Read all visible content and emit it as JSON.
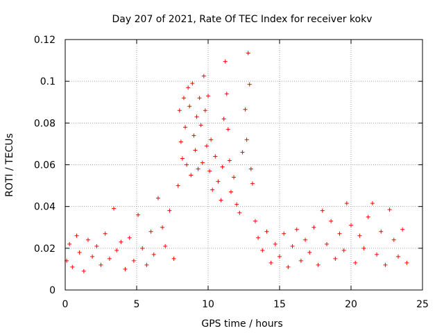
{
  "chart_data": {
    "type": "scatter",
    "title": "Day 207 of 2021, Rate Of TEC Index for receiver kokv",
    "xlabel": "GPS time / hours",
    "ylabel": "ROTI / TECUs",
    "xlim": [
      0,
      25
    ],
    "ylim": [
      0,
      0.12
    ],
    "xticks": [
      "0",
      "5",
      "10",
      "15",
      "20",
      "25"
    ],
    "yticks": [
      "0",
      "0.02",
      "0.04",
      "0.06",
      "0.08",
      "0.1",
      "0.12"
    ],
    "grid": true,
    "marker": "+",
    "color": "#ff0000",
    "series": [
      {
        "points": [
          [
            0.1,
            0.014
          ],
          [
            0.3,
            0.022
          ],
          [
            0.5,
            0.011
          ],
          [
            0.8,
            0.026
          ],
          [
            1.0,
            0.018
          ],
          [
            1.3,
            0.009
          ],
          [
            1.6,
            0.024
          ],
          [
            1.9,
            0.016
          ],
          [
            2.2,
            0.021
          ],
          [
            2.5,
            0.012
          ],
          [
            2.8,
            0.027
          ],
          [
            3.1,
            0.015
          ],
          [
            3.4,
            0.039
          ],
          [
            3.6,
            0.019
          ],
          [
            3.9,
            0.023
          ],
          [
            4.2,
            0.01
          ],
          [
            4.5,
            0.025
          ],
          [
            4.8,
            0.014
          ],
          [
            5.1,
            0.036
          ],
          [
            5.4,
            0.02
          ],
          [
            5.7,
            0.012
          ],
          [
            6.0,
            0.028
          ],
          [
            6.2,
            0.017
          ],
          [
            6.5,
            0.044
          ],
          [
            6.8,
            0.03
          ],
          [
            7.0,
            0.021
          ],
          [
            7.3,
            0.038
          ],
          [
            7.6,
            0.015
          ],
          [
            7.9,
            0.05
          ],
          [
            8.0,
            0.086
          ],
          [
            8.1,
            0.071
          ],
          [
            8.2,
            0.063
          ],
          [
            8.3,
            0.092
          ],
          [
            8.4,
            0.078
          ],
          [
            8.5,
            0.06
          ],
          [
            8.6,
            0.097
          ],
          [
            8.7,
            0.088
          ],
          [
            8.8,
            0.055
          ],
          [
            8.9,
            0.099
          ],
          [
            9.0,
            0.074
          ],
          [
            9.1,
            0.067
          ],
          [
            9.2,
            0.083
          ],
          [
            9.3,
            0.058
          ],
          [
            9.4,
            0.092
          ],
          [
            9.5,
            0.079
          ],
          [
            9.6,
            0.061
          ],
          [
            9.7,
            0.1025
          ],
          [
            9.8,
            0.086
          ],
          [
            9.9,
            0.069
          ],
          [
            10.0,
            0.093
          ],
          [
            10.1,
            0.057
          ],
          [
            10.2,
            0.072
          ],
          [
            10.3,
            0.048
          ],
          [
            10.5,
            0.064
          ],
          [
            10.7,
            0.052
          ],
          [
            10.9,
            0.043
          ],
          [
            11.0,
            0.059
          ],
          [
            11.1,
            0.082
          ],
          [
            11.2,
            0.1095
          ],
          [
            11.3,
            0.094
          ],
          [
            11.4,
            0.077
          ],
          [
            11.5,
            0.062
          ],
          [
            11.6,
            0.047
          ],
          [
            11.8,
            0.054
          ],
          [
            12.0,
            0.041
          ],
          [
            12.2,
            0.037
          ],
          [
            12.4,
            0.066
          ],
          [
            12.6,
            0.0865
          ],
          [
            12.7,
            0.072
          ],
          [
            12.8,
            0.1135
          ],
          [
            12.9,
            0.0985
          ],
          [
            13.0,
            0.058
          ],
          [
            13.1,
            0.051
          ],
          [
            13.3,
            0.033
          ],
          [
            13.5,
            0.025
          ],
          [
            13.8,
            0.019
          ],
          [
            14.1,
            0.028
          ],
          [
            14.4,
            0.013
          ],
          [
            14.7,
            0.022
          ],
          [
            15.0,
            0.016
          ],
          [
            15.3,
            0.027
          ],
          [
            15.6,
            0.011
          ],
          [
            15.9,
            0.021
          ],
          [
            16.2,
            0.029
          ],
          [
            16.5,
            0.014
          ],
          [
            16.8,
            0.024
          ],
          [
            17.1,
            0.018
          ],
          [
            17.4,
            0.03
          ],
          [
            17.7,
            0.012
          ],
          [
            18.0,
            0.038
          ],
          [
            18.3,
            0.022
          ],
          [
            18.6,
            0.033
          ],
          [
            18.9,
            0.015
          ],
          [
            19.2,
            0.027
          ],
          [
            19.5,
            0.019
          ],
          [
            19.7,
            0.0415
          ],
          [
            20.0,
            0.031
          ],
          [
            20.3,
            0.013
          ],
          [
            20.6,
            0.026
          ],
          [
            20.9,
            0.02
          ],
          [
            21.2,
            0.035
          ],
          [
            21.5,
            0.0415
          ],
          [
            21.8,
            0.017
          ],
          [
            22.1,
            0.028
          ],
          [
            22.4,
            0.012
          ],
          [
            22.7,
            0.0385
          ],
          [
            23.0,
            0.024
          ],
          [
            23.3,
            0.016
          ],
          [
            23.6,
            0.029
          ],
          [
            23.9,
            0.013
          ]
        ]
      }
    ]
  }
}
